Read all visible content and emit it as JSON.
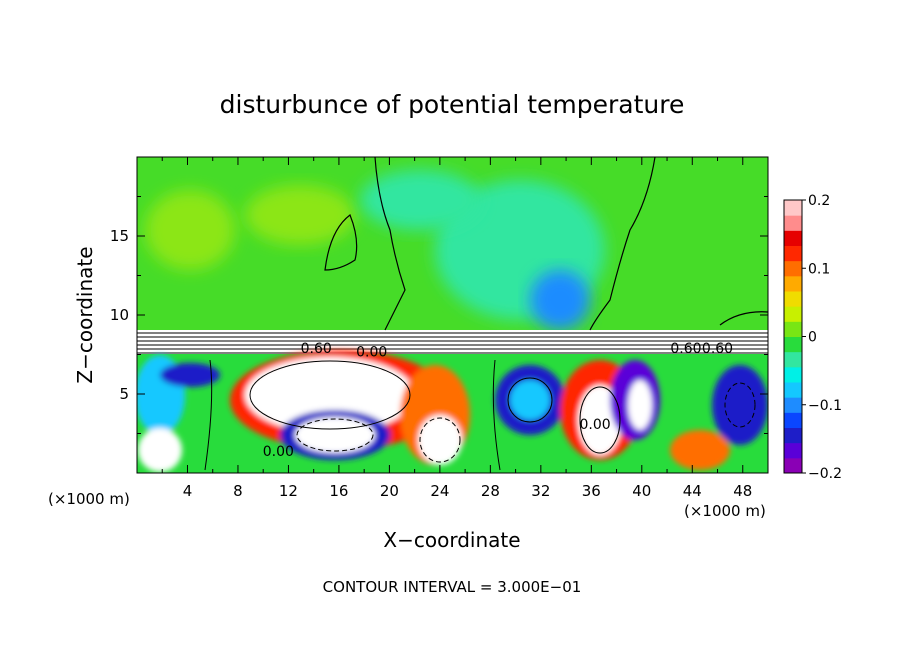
{
  "chart_data": {
    "type": "heatmap",
    "title": "disturbunce of potential temperature",
    "xlabel": "X−coordinate",
    "ylabel": "Z−coordinate",
    "x_unit": "(×1000 m)",
    "z_unit": "(×1000 m)",
    "xlim": [
      0,
      50
    ],
    "ylim": [
      0,
      20
    ],
    "x_ticks": [
      4,
      8,
      12,
      16,
      20,
      24,
      28,
      32,
      36,
      40,
      44,
      48
    ],
    "x_tick_labels": [
      "4",
      "8",
      "12",
      "16",
      "20",
      "24",
      "28",
      "32",
      "36",
      "40",
      "44",
      "48"
    ],
    "y_ticks": [
      5,
      10,
      15
    ],
    "y_tick_labels": [
      "5",
      "10",
      "15"
    ],
    "colorbar": {
      "range": [
        -0.2,
        0.2
      ],
      "tick_values": [
        0.2,
        0.1,
        0,
        -0.1,
        -0.2
      ],
      "tick_labels": [
        "0.2",
        "0.1",
        "0",
        "−0.1",
        "−0.2"
      ],
      "colors": [
        "#8a00b5",
        "#5a00d8",
        "#1e1ec8",
        "#0a46ff",
        "#1e8cff",
        "#14c8ff",
        "#00f0e6",
        "#32e6a0",
        "#28dc3c",
        "#78e614",
        "#c8f000",
        "#f0dc00",
        "#ffaa00",
        "#ff6e00",
        "#ff2800",
        "#e60000",
        "#ff8c8c",
        "#ffc8c8"
      ]
    },
    "contour_labels": [
      {
        "text": "0.60",
        "x": 14.2,
        "z": 7.9
      },
      {
        "text": "0.00",
        "x": 18.6,
        "z": 7.7
      },
      {
        "text": "0.00",
        "x": 11.2,
        "z": 1.4
      },
      {
        "text": "0.00",
        "x": 36.3,
        "z": 3.1
      },
      {
        "text": "0.60",
        "x": 43.5,
        "z": 7.9
      },
      {
        "text": "0.60",
        "x": 46.0,
        "z": 7.9
      }
    ],
    "contour_interval": "CONTOUR INTERVAL = 3.000E−01"
  }
}
